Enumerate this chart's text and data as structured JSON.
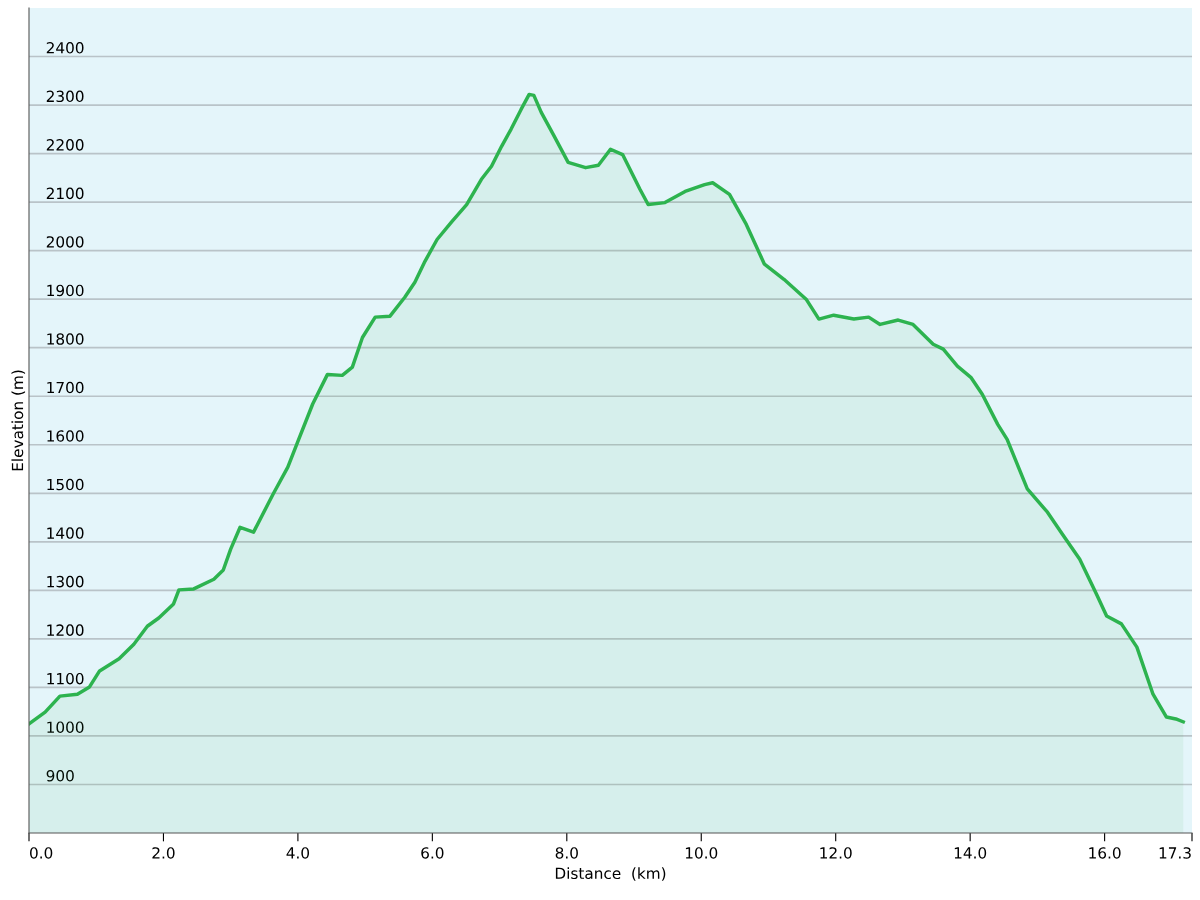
{
  "chart_data": {
    "type": "area",
    "xlabel": "Distance  (km)",
    "ylabel": "Elevation (m)",
    "xlim": [
      0,
      17.3
    ],
    "xticks": [
      {
        "value": 0,
        "label": "0.0"
      },
      {
        "value": 2,
        "label": "2.0"
      },
      {
        "value": 4,
        "label": "4.0"
      },
      {
        "value": 6,
        "label": "6.0"
      },
      {
        "value": 8,
        "label": "8.0"
      },
      {
        "value": 10,
        "label": "10.0"
      },
      {
        "value": 12,
        "label": "12.0"
      },
      {
        "value": 14,
        "label": "14.0"
      },
      {
        "value": 16,
        "label": "16.0"
      },
      {
        "value": 17.3,
        "label": "17.3"
      }
    ],
    "ylim": [
      800,
      2500
    ],
    "yticks": [
      900,
      1000,
      1100,
      1200,
      1300,
      1400,
      1500,
      1600,
      1700,
      1800,
      1900,
      2000,
      2100,
      2200,
      2300,
      2400
    ],
    "grid": "y",
    "series": [
      {
        "color": "#2db34f",
        "x": [
          0,
          0.24,
          0.46,
          0.72,
          0.9,
          1.05,
          1.34,
          1.56,
          1.76,
          1.93,
          2.15,
          2.23,
          2.45,
          2.75,
          2.89,
          3.0,
          3.14,
          3.34,
          3.63,
          3.85,
          4.0,
          4.22,
          4.44,
          4.66,
          4.81,
          4.96,
          5.15,
          5.37,
          5.59,
          5.74,
          5.89,
          6.07,
          6.29,
          6.51,
          6.73,
          6.88,
          7.03,
          7.17,
          7.32,
          7.44,
          7.51,
          7.62,
          7.8,
          8.02,
          8.28,
          8.47,
          8.65,
          8.83,
          9.09,
          9.21,
          9.46,
          9.76,
          10.05,
          10.17,
          10.42,
          10.67,
          10.94,
          11.23,
          11.56,
          11.75,
          11.97,
          12.27,
          12.49,
          12.66,
          12.93,
          13.15,
          13.45,
          13.6,
          13.81,
          14.01,
          14.18,
          14.41,
          14.55,
          14.7,
          14.85,
          15.15,
          15.37,
          15.63,
          15.88,
          16.03,
          16.25,
          16.48,
          16.72,
          16.92,
          17.06,
          17.17
        ],
        "values": [
          1025,
          1049,
          1082,
          1086,
          1101,
          1134,
          1159,
          1189,
          1226,
          1243,
          1272,
          1301,
          1303,
          1323,
          1342,
          1385,
          1430,
          1420,
          1498,
          1554,
          1607,
          1684,
          1745,
          1743,
          1760,
          1821,
          1863,
          1865,
          1904,
          1935,
          1978,
          2023,
          2060,
          2095,
          2147,
          2174,
          2215,
          2250,
          2291,
          2322,
          2320,
          2285,
          2239,
          2182,
          2171,
          2176,
          2209,
          2198,
          2126,
          2095,
          2099,
          2122,
          2136,
          2140,
          2116,
          2054,
          1972,
          1941,
          1900,
          1859,
          1867,
          1859,
          1863,
          1848,
          1857,
          1848,
          1807,
          1797,
          1762,
          1739,
          1704,
          1642,
          1611,
          1560,
          1509,
          1461,
          1416,
          1364,
          1292,
          1247,
          1231,
          1183,
          1086,
          1039,
          1035,
          1029
        ]
      }
    ]
  }
}
